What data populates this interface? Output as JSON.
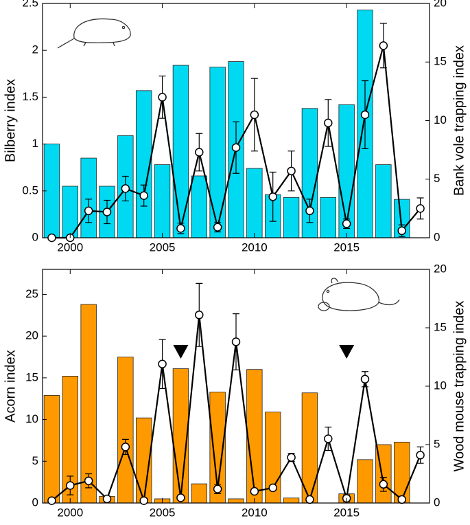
{
  "chart_data": [
    {
      "type": "combo",
      "ylabel": "Bilberry index",
      "y2label": "Bank vole trapping index",
      "x": [
        1999,
        2000,
        2001,
        2002,
        2003,
        2004,
        2005,
        2006,
        2007,
        2008,
        2009,
        2010,
        2011,
        2012,
        2013,
        2014,
        2015,
        2016,
        2017,
        2018,
        2019
      ],
      "xlim": [
        1998.5,
        2019.5
      ],
      "xticks": [
        2000,
        2005,
        2010,
        2015
      ],
      "ylim": [
        0,
        2.5
      ],
      "yticks": [
        0,
        0.5,
        1,
        1.5,
        2,
        2.5
      ],
      "y2lim": [
        0,
        20
      ],
      "y2ticks": [
        0,
        5,
        10,
        15,
        20
      ],
      "series": [
        {
          "type": "bar",
          "color": "#00d9f2",
          "values": [
            1.0,
            0.55,
            0.85,
            0.55,
            1.09,
            1.57,
            0.78,
            1.84,
            0.66,
            1.82,
            1.88,
            0.74,
            0.46,
            0.43,
            1.38,
            0.43,
            1.42,
            2.43,
            0.78,
            0.41,
            null
          ]
        },
        {
          "type": "line",
          "axis": "y2",
          "color": "#000000",
          "values": [
            0,
            0,
            2.3,
            2.2,
            4.2,
            3.6,
            12.0,
            0.8,
            7.3,
            0.9,
            7.7,
            10.5,
            3.5,
            5.7,
            2.3,
            9.8,
            1.2,
            10.5,
            16.4,
            0.6,
            2.5
          ],
          "errors": [
            0,
            0,
            1.0,
            1.0,
            1.05,
            0.9,
            1.8,
            0.45,
            1.6,
            0.4,
            2.2,
            3.1,
            2.1,
            1.7,
            1.0,
            2.0,
            0.4,
            2.9,
            1.9,
            0.5,
            0.9
          ]
        }
      ]
    },
    {
      "type": "combo",
      "ylabel": "Acorn index",
      "y2label": "Wood mouse trapping index",
      "x": [
        1999,
        2000,
        2001,
        2002,
        2003,
        2004,
        2005,
        2006,
        2007,
        2008,
        2009,
        2010,
        2011,
        2012,
        2013,
        2014,
        2015,
        2016,
        2017,
        2018,
        2019
      ],
      "xlim": [
        1998.5,
        2019.5
      ],
      "xticks": [
        2000,
        2005,
        2010,
        2015
      ],
      "ylim": [
        0,
        28
      ],
      "yticks": [
        0,
        5,
        10,
        15,
        20,
        25
      ],
      "y2lim": [
        0,
        20
      ],
      "y2ticks": [
        0,
        5,
        10,
        15,
        20
      ],
      "markers": [
        2006,
        2015
      ],
      "series": [
        {
          "type": "bar",
          "color": "#ff9900",
          "values": [
            12.9,
            15.2,
            23.8,
            0.8,
            17.5,
            10.2,
            0.5,
            16.1,
            2.3,
            13.3,
            0.5,
            16.0,
            10.9,
            0.6,
            13.2,
            0,
            1.1,
            5.2,
            7.0,
            7.3,
            null
          ]
        },
        {
          "type": "line",
          "axis": "y2",
          "color": "#000000",
          "values": [
            0.2,
            1.5,
            1.9,
            0.35,
            4.8,
            0.2,
            11.9,
            0.45,
            16.1,
            1.2,
            13.8,
            1.0,
            1.3,
            3.9,
            0.3,
            5.5,
            0.4,
            10.6,
            1.6,
            0.3,
            4.1
          ],
          "errors": [
            0,
            0.8,
            0.6,
            0,
            0.65,
            0,
            2.1,
            0,
            2.7,
            0.4,
            2.4,
            0.2,
            0.2,
            0.35,
            0,
            1.0,
            0.3,
            0.65,
            0.6,
            0,
            0.7
          ]
        }
      ]
    }
  ]
}
